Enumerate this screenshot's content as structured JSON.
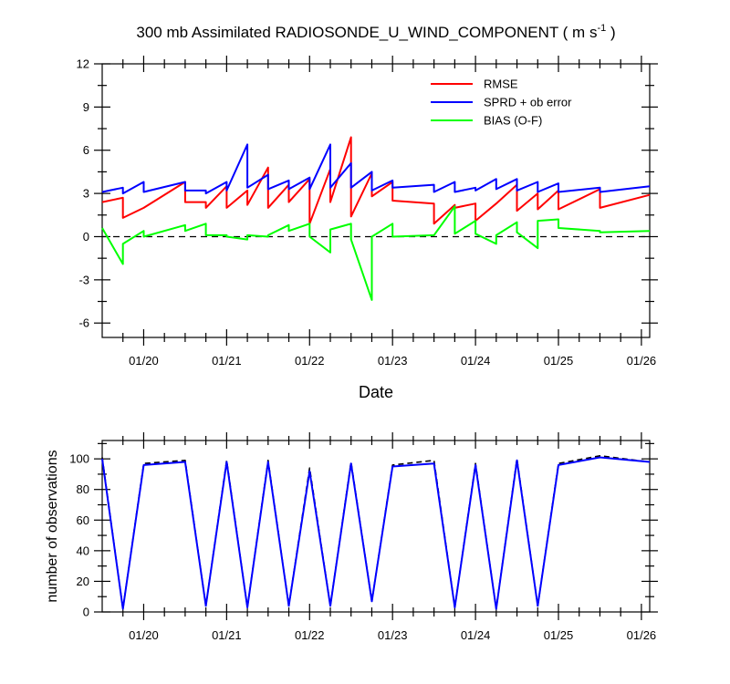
{
  "chart_data": [
    {
      "type": "line",
      "title_main": "300 mb Assimilated RADIOSONDE_U_WIND_COMPONENT ( m s",
      "title_sup": "-1",
      "title_end": " )",
      "xlabel": "Date",
      "ylabel": "",
      "xlim": [
        0,
        6.6
      ],
      "ylim": [
        -7,
        12
      ],
      "x_ticks": [
        0.5,
        1.5,
        2.5,
        3.5,
        4.5,
        5.5,
        6.5
      ],
      "x_tick_labels": [
        "01/20",
        "01/21",
        "01/22",
        "01/23",
        "01/24",
        "01/25",
        "01/26"
      ],
      "y_ticks": [
        -6,
        -3,
        0,
        3,
        6,
        9,
        12
      ],
      "y_tick_labels": [
        "-6",
        "-3",
        "0",
        "3",
        "6",
        "9",
        "12"
      ],
      "zero_line": "dashed",
      "legend_position": "top-right",
      "series": [
        {
          "name": "RMSE",
          "color": "#ff0000",
          "x": [
            0,
            0.25,
            0.25,
            0.5,
            0.5,
            1.0,
            1.0,
            1.25,
            1.25,
            1.5,
            1.5,
            1.75,
            1.75,
            2.0,
            2.0,
            2.25,
            2.25,
            2.5,
            2.5,
            2.75,
            2.75,
            3.0,
            3.0,
            3.25,
            3.25,
            3.5,
            3.5,
            4.0,
            4.0,
            4.25,
            4.25,
            4.5,
            4.5,
            4.75,
            4.75,
            5.0,
            5.0,
            5.25,
            5.25,
            5.5,
            5.5,
            6.0,
            6.0,
            6.6
          ],
          "y": [
            2.4,
            2.7,
            1.3,
            2.0,
            2.0,
            3.8,
            2.4,
            2.4,
            2.0,
            3.5,
            2.0,
            3.2,
            2.2,
            4.8,
            2.0,
            3.6,
            2.4,
            4.0,
            0.9,
            4.7,
            2.4,
            6.9,
            1.4,
            4.4,
            2.8,
            3.8,
            2.5,
            2.3,
            0.9,
            2.2,
            2.0,
            2.3,
            1.1,
            2.3,
            2.3,
            3.6,
            1.8,
            3.0,
            1.9,
            3.2,
            1.9,
            3.3,
            2.0,
            2.9
          ]
        },
        {
          "name": "SPRD + ob error",
          "color": "#0000ff",
          "x": [
            0,
            0.25,
            0.25,
            0.5,
            0.5,
            1.0,
            1.0,
            1.25,
            1.25,
            1.5,
            1.5,
            1.75,
            1.75,
            2.0,
            2.0,
            2.25,
            2.25,
            2.5,
            2.5,
            2.75,
            2.75,
            3.0,
            3.0,
            3.25,
            3.25,
            3.5,
            3.5,
            4.0,
            4.0,
            4.25,
            4.25,
            4.5,
            4.5,
            4.75,
            4.75,
            5.0,
            5.0,
            5.25,
            5.25,
            5.5,
            5.5,
            6.0,
            6.0,
            6.6
          ],
          "y": [
            3.1,
            3.4,
            3.0,
            3.8,
            3.1,
            3.8,
            3.2,
            3.2,
            3.0,
            3.8,
            3.2,
            6.4,
            3.4,
            4.3,
            3.3,
            3.9,
            3.3,
            4.1,
            3.3,
            6.4,
            3.4,
            5.1,
            3.4,
            4.5,
            3.2,
            3.9,
            3.4,
            3.6,
            3.1,
            3.8,
            3.1,
            3.4,
            3.2,
            4.0,
            3.3,
            4.0,
            3.2,
            3.8,
            3.1,
            3.7,
            3.1,
            3.4,
            3.1,
            3.5
          ]
        },
        {
          "name": "BIAS (O-F)",
          "color": "#00ff00",
          "x": [
            0,
            0.25,
            0.25,
            0.5,
            0.5,
            1.0,
            1.0,
            1.25,
            1.25,
            1.5,
            1.5,
            1.75,
            1.75,
            2.0,
            2.0,
            2.25,
            2.25,
            2.5,
            2.5,
            2.75,
            2.75,
            3.0,
            3.0,
            3.25,
            3.25,
            3.5,
            3.5,
            4.0,
            4.0,
            4.25,
            4.25,
            4.5,
            4.5,
            4.75,
            4.75,
            5.0,
            5.0,
            5.25,
            5.25,
            5.5,
            5.5,
            6.0,
            6.0,
            6.6
          ],
          "y": [
            0.6,
            -1.9,
            -0.5,
            0.4,
            0.0,
            0.8,
            0.4,
            0.9,
            0.1,
            0.1,
            0.0,
            -0.2,
            0.1,
            0.0,
            0.1,
            0.8,
            0.4,
            0.9,
            0.0,
            -1.1,
            0.5,
            0.9,
            -0.2,
            -4.4,
            0.0,
            0.9,
            0.0,
            0.1,
            0.1,
            2.1,
            0.2,
            1.1,
            0.2,
            -0.5,
            0.1,
            1.0,
            0.3,
            -0.8,
            1.1,
            1.2,
            0.6,
            0.4,
            0.3,
            0.4
          ]
        }
      ]
    },
    {
      "type": "line",
      "title": "",
      "xlabel": "",
      "ylabel": "number of observations",
      "xlim": [
        0,
        6.6
      ],
      "ylim": [
        0,
        112
      ],
      "x_ticks": [
        0.5,
        1.5,
        2.5,
        3.5,
        4.5,
        5.5,
        6.5
      ],
      "x_tick_labels": [
        "01/20",
        "01/21",
        "01/22",
        "01/23",
        "01/24",
        "01/25",
        "01/26"
      ],
      "y_ticks": [
        0,
        20,
        40,
        60,
        80,
        100
      ],
      "y_tick_labels": [
        "0",
        "20",
        "40",
        "60",
        "80",
        "100"
      ],
      "series": [
        {
          "name": "",
          "color": "#000000",
          "dash": "dashed",
          "x": [
            0,
            0.25,
            0.5,
            1.0,
            1.25,
            1.5,
            1.75,
            2.0,
            2.25,
            2.5,
            2.75,
            3.0,
            3.25,
            3.5,
            4.0,
            4.25,
            4.5,
            4.75,
            5.0,
            5.25,
            5.5,
            6.0,
            6.6
          ],
          "y": [
            101,
            2,
            97,
            99,
            4,
            99,
            3,
            99,
            4,
            94,
            4,
            98,
            7,
            96,
            99,
            3,
            97,
            2,
            100,
            4,
            97,
            102,
            98
          ]
        },
        {
          "name": "",
          "color": "#0000ff",
          "dash": "solid",
          "x": [
            0,
            0.25,
            0.5,
            1.0,
            1.25,
            1.5,
            1.75,
            2.0,
            2.25,
            2.5,
            2.75,
            3.0,
            3.25,
            3.5,
            4.0,
            4.25,
            4.5,
            4.75,
            5.0,
            5.25,
            5.5,
            6.0,
            6.6
          ],
          "y": [
            100,
            2,
            96,
            98,
            4,
            98,
            3,
            98,
            4,
            92,
            4,
            97,
            7,
            95,
            97,
            3,
            96,
            2,
            99,
            4,
            96,
            101,
            98
          ]
        }
      ]
    }
  ]
}
